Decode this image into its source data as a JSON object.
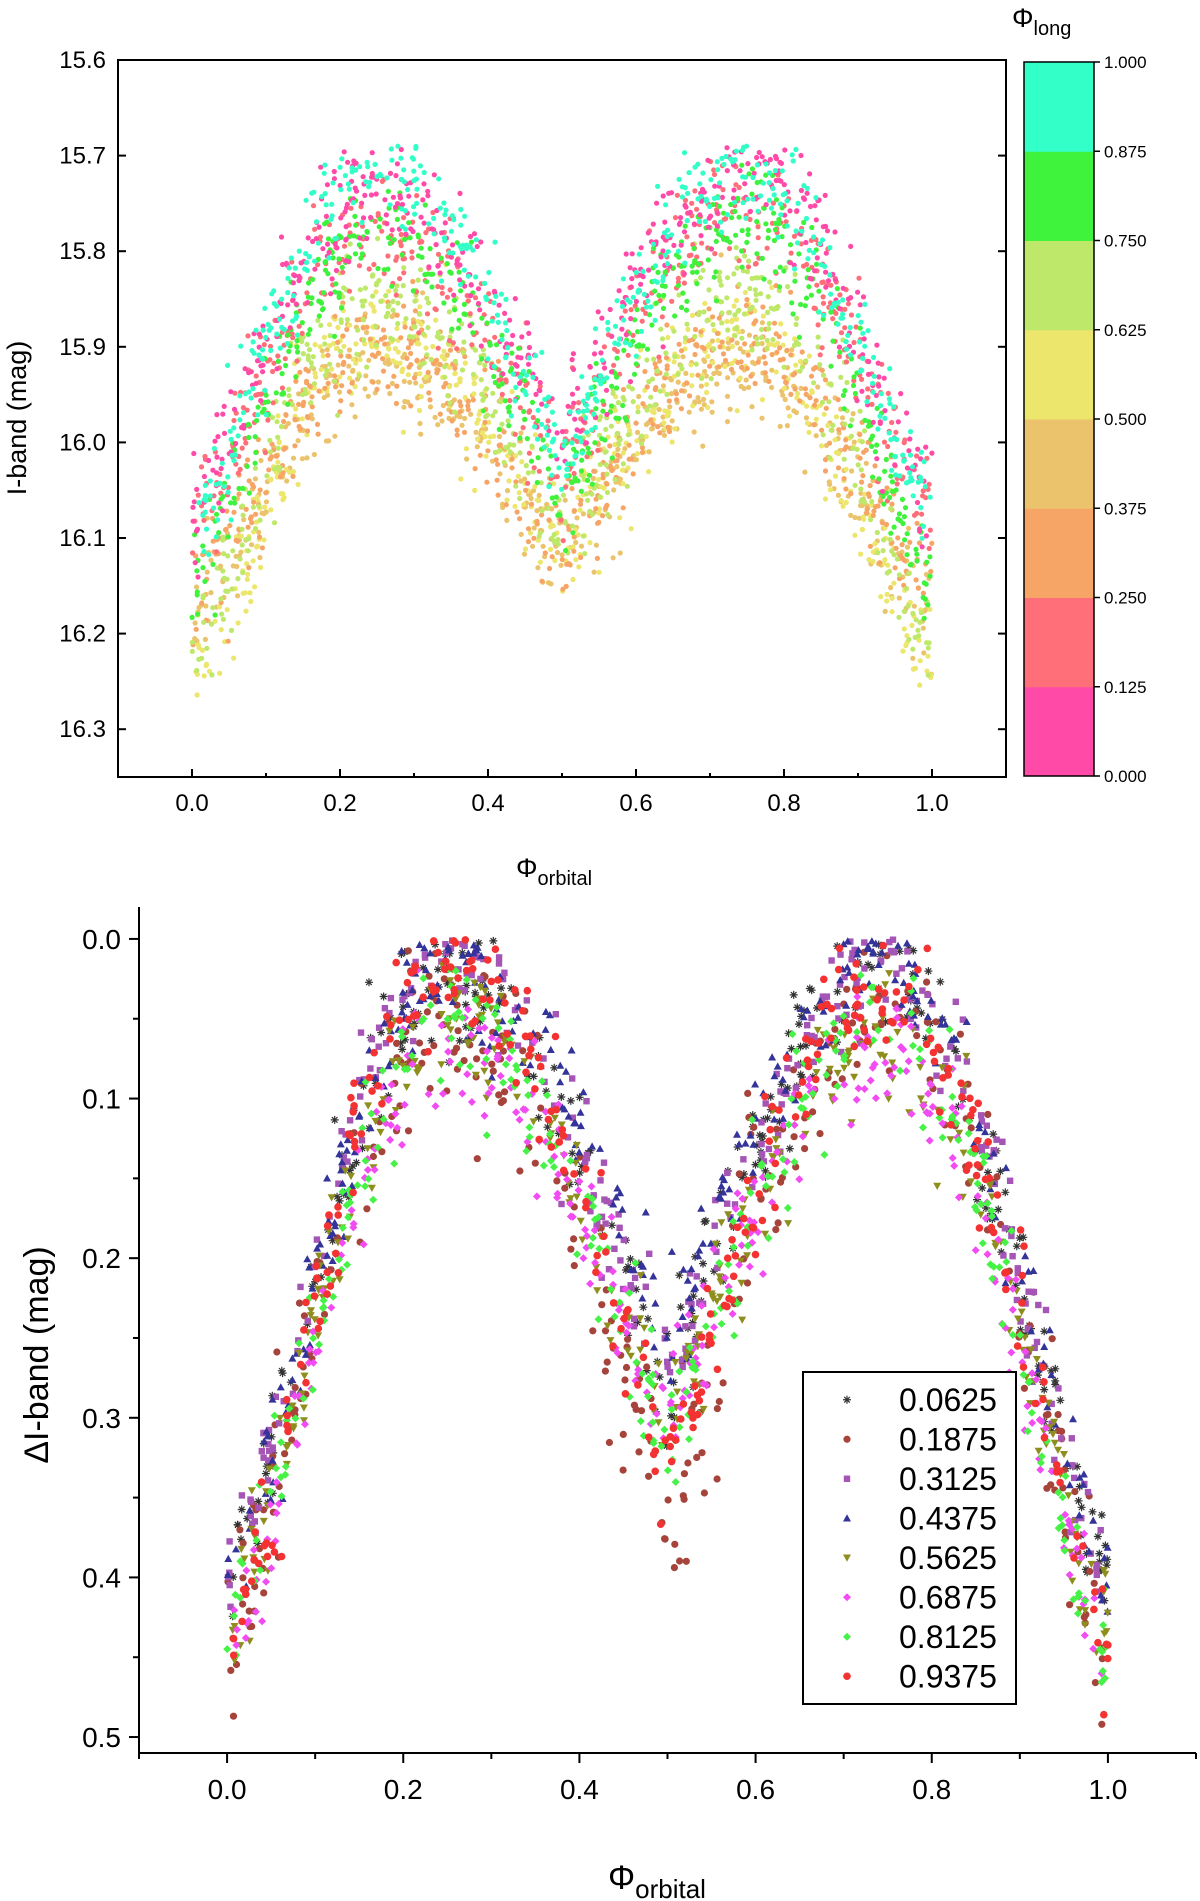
{
  "colors": {
    "colorbar": [
      "#ff4aa8",
      "#ff6f7a",
      "#f7a566",
      "#ebc36c",
      "#ece66c",
      "#bde86a",
      "#3ff23c",
      "#33ffc8"
    ],
    "series": [
      "#333333",
      "#a6443c",
      "#a555b5",
      "#33339a",
      "#8e8e1e",
      "#f24bf2",
      "#45f245",
      "#f43232"
    ]
  },
  "chart_data": [
    {
      "type": "scatter",
      "title": "",
      "xlabel": "Φorbital",
      "xlabel_main": "Φ",
      "xlabel_sub": "orbital",
      "ylabel": "I-band (mag)",
      "xlim": [
        -0.1,
        1.1
      ],
      "ylim": [
        16.35,
        15.6
      ],
      "y_inverted": true,
      "xticks": [
        "0.0",
        "0.2",
        "0.4",
        "0.6",
        "0.8",
        "1.0"
      ],
      "yticks": [
        "15.6",
        "15.7",
        "15.8",
        "15.9",
        "16.0",
        "16.1",
        "16.2",
        "16.3"
      ],
      "colorbar": {
        "label": "Φlong",
        "label_main": "Φ",
        "label_sub": "long",
        "ticks": [
          "0.000",
          "0.125",
          "0.250",
          "0.375",
          "0.500",
          "0.625",
          "0.750",
          "0.875",
          "1.000"
        ]
      },
      "curve_model": "dense phase-folded light curve, ~4000 points colored by long-period phase",
      "series": [
        {
          "color_bin": "0.000-0.125",
          "base_maxima": [
            15.74,
            15.72
          ],
          "base_minima": [
            16.06,
            15.99
          ],
          "scatter": 0.03
        },
        {
          "color_bin": "0.125-0.250",
          "base_maxima": [
            15.79,
            15.75
          ],
          "base_minima": [
            16.08,
            16.03
          ],
          "scatter": 0.03
        },
        {
          "color_bin": "0.250-0.375",
          "base_maxima": [
            15.9,
            15.89
          ],
          "base_minima": [
            16.16,
            16.11
          ],
          "scatter": 0.03
        },
        {
          "color_bin": "0.375-0.500",
          "base_maxima": [
            15.92,
            15.92
          ],
          "base_minima": [
            16.18,
            16.11
          ],
          "scatter": 0.03
        },
        {
          "color_bin": "0.500-0.625",
          "base_maxima": [
            15.89,
            15.89
          ],
          "base_minima": [
            16.24,
            16.11
          ],
          "scatter": 0.03
        },
        {
          "color_bin": "0.625-0.750",
          "base_maxima": [
            15.85,
            15.85
          ],
          "base_minima": [
            16.21,
            16.09
          ],
          "scatter": 0.03
        },
        {
          "color_bin": "0.750-0.875",
          "base_maxima": [
            15.78,
            15.77
          ],
          "base_minima": [
            16.14,
            16.06
          ],
          "scatter": 0.03
        },
        {
          "color_bin": "0.875-1.000",
          "base_maxima": [
            15.72,
            15.72
          ],
          "base_minima": [
            16.08,
            16.02
          ],
          "scatter": 0.03
        }
      ]
    },
    {
      "type": "scatter",
      "title": "",
      "xlabel": "Φorbital",
      "xlabel_main": "Φ",
      "xlabel_sub": "orbital",
      "ylabel": "ΔI-band (mag)",
      "xlim": [
        -0.1,
        1.1
      ],
      "ylim": [
        0.51,
        -0.02
      ],
      "y_inverted": true,
      "xticks": [
        "0.0",
        "0.2",
        "0.4",
        "0.6",
        "0.8",
        "1.0"
      ],
      "yticks": [
        "0.0",
        "0.1",
        "0.2",
        "0.3",
        "0.4",
        "0.5"
      ],
      "legend_placement": "bottom-right",
      "series": [
        {
          "name": "0.0625",
          "marker": "star",
          "maxima": [
            0.02,
            0.02
          ],
          "minima": [
            0.4,
            0.28
          ],
          "scatter": 0.02
        },
        {
          "name": "0.1875",
          "marker": "circle",
          "maxima": [
            0.05,
            0.04
          ],
          "minima": [
            0.43,
            0.36
          ],
          "scatter": 0.03
        },
        {
          "name": "0.3125",
          "marker": "square",
          "maxima": [
            0.01,
            0.02
          ],
          "minima": [
            0.4,
            0.27
          ],
          "scatter": 0.02
        },
        {
          "name": "0.4375",
          "marker": "triangle-up",
          "maxima": [
            0.02,
            0.01
          ],
          "minima": [
            0.4,
            0.25
          ],
          "scatter": 0.02
        },
        {
          "name": "0.5625",
          "marker": "triangle-down",
          "maxima": [
            0.05,
            0.06
          ],
          "minima": [
            0.43,
            0.3
          ],
          "scatter": 0.02
        },
        {
          "name": "0.6875",
          "marker": "diamond",
          "maxima": [
            0.07,
            0.07
          ],
          "minima": [
            0.45,
            0.3
          ],
          "scatter": 0.02
        },
        {
          "name": "0.8125",
          "marker": "diamond",
          "maxima": [
            0.05,
            0.05
          ],
          "minima": [
            0.45,
            0.32
          ],
          "scatter": 0.02
        },
        {
          "name": "0.9375",
          "marker": "hexagon",
          "maxima": [
            0.02,
            0.03
          ],
          "minima": [
            0.44,
            0.33
          ],
          "scatter": 0.02
        }
      ]
    }
  ]
}
